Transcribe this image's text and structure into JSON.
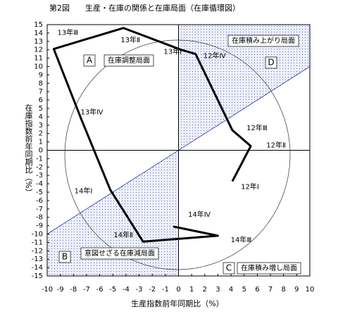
{
  "chart_data": {
    "type": "line",
    "title": "第2図　　生産・在庫の関係と在庫局面（在庫循環図）",
    "x_label": "生産指数前年同期比（%）",
    "y_label": "在庫指数前年同期比（%）",
    "xlim": [
      -10,
      10
    ],
    "ylim": [
      -15,
      15
    ],
    "xticks": [
      -10,
      -9,
      -8,
      -7,
      -6,
      -5,
      -4,
      -3,
      -2,
      -1,
      0,
      1,
      2,
      3,
      4,
      5,
      6,
      7,
      8,
      9,
      10
    ],
    "yticks": [
      -15,
      -14,
      -13,
      -12,
      -11,
      -10,
      -9,
      -8,
      -7,
      -6,
      -5,
      -4,
      -3,
      -2,
      -1,
      0,
      1,
      2,
      3,
      4,
      5,
      6,
      7,
      8,
      9,
      10,
      11,
      12,
      13,
      14,
      15
    ],
    "color": "#000000",
    "categories": [
      "12年Ⅰ",
      "12年Ⅱ",
      "12年Ⅲ",
      "12年Ⅳ",
      "13年Ⅰ",
      "13年Ⅱ",
      "13年Ⅲ",
      "13年Ⅳ",
      "14年Ⅰ",
      "14年Ⅱ",
      "14年Ⅲ",
      "14年Ⅳ"
    ],
    "x": [
      4.1,
      5.5,
      4.1,
      1.3,
      0.2,
      -4.2,
      -9.5,
      -7.4,
      -5.2,
      -2.7,
      3.0,
      -0.4
    ],
    "values": [
      -3.7,
      0.5,
      2.4,
      11.5,
      12.0,
      14.6,
      12.1,
      3.7,
      -4.7,
      -10.9,
      -10.2,
      -9.1
    ],
    "annotations": [
      {
        "letter": "A",
        "text": "在庫調整局面"
      },
      {
        "letter": "B",
        "text": "意図せざる在庫減局面"
      },
      {
        "letter": "C",
        "text": "在庫積み増し局面"
      },
      {
        "letter": "D",
        "text": "在庫積み上がり局面"
      }
    ]
  }
}
